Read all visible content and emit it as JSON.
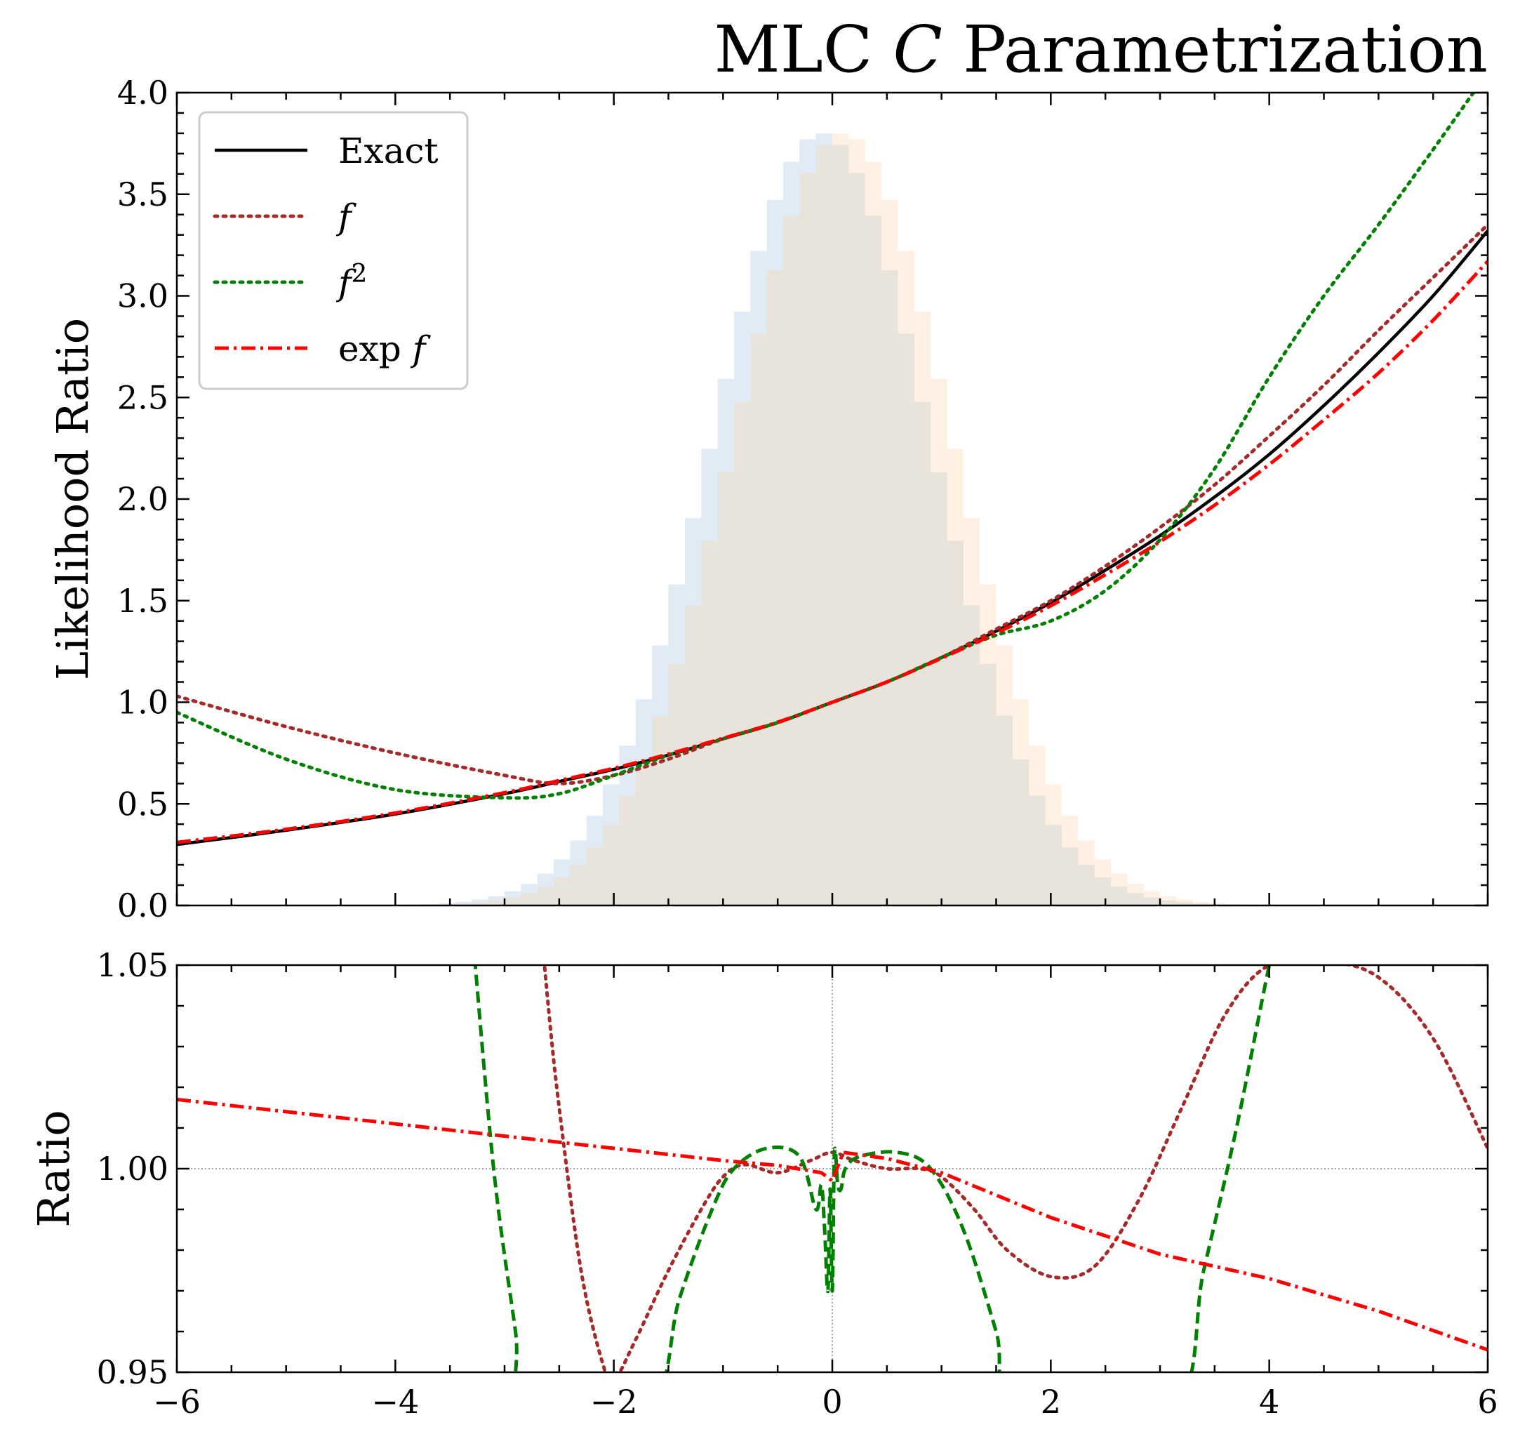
{
  "title": "MLC C Parametrization",
  "colors": {
    "exact": "#000000",
    "f": "#a52a2a",
    "f2": "#008000",
    "expf": "#ff0000",
    "hist_a": "#dbe7f4",
    "hist_b": "#fde9d5",
    "hist_overlap": "#e8e4dc"
  },
  "chart_data": [
    {
      "type": "line",
      "panel": "main",
      "title": "MLC C Parametrization",
      "xlabel": "",
      "ylabel": "Likelihood Ratio",
      "xlim": [
        -6,
        6
      ],
      "ylim": [
        0,
        4
      ],
      "yticks": [
        "0.0",
        "0.5",
        "1.0",
        "1.5",
        "2.0",
        "2.5",
        "3.0",
        "3.5",
        "4.0"
      ],
      "ytick_values": [
        0,
        0.5,
        1,
        1.5,
        2,
        2.5,
        3,
        3.5,
        4
      ],
      "grid": false,
      "legend_position": "top-left",
      "x": [
        -6,
        -5,
        -4,
        -3,
        -2.5,
        -2,
        -1.5,
        -1,
        -0.5,
        0,
        0.5,
        1,
        1.5,
        2,
        2.5,
        3,
        3.5,
        4,
        4.5,
        5,
        5.5,
        6
      ],
      "series": [
        {
          "name": "Exact",
          "style": "solid",
          "color_key": "exact",
          "values": [
            0.3,
            0.37,
            0.45,
            0.55,
            0.61,
            0.67,
            0.74,
            0.82,
            0.9,
            1.0,
            1.1,
            1.22,
            1.35,
            1.49,
            1.65,
            1.82,
            2.01,
            2.22,
            2.46,
            2.72,
            3.0,
            3.32
          ]
        },
        {
          "name": "f",
          "style": "dotted",
          "color_key": "f",
          "values": [
            1.03,
            0.88,
            0.75,
            0.64,
            0.6,
            0.64,
            0.72,
            0.82,
            0.9,
            1.0,
            1.1,
            1.22,
            1.36,
            1.5,
            1.67,
            1.86,
            2.07,
            2.31,
            2.56,
            2.83,
            3.09,
            3.35
          ]
        },
        {
          "name": "f^2",
          "style": "dotted",
          "color_key": "f2",
          "values": [
            0.95,
            0.72,
            0.57,
            0.53,
            0.55,
            0.64,
            0.74,
            0.82,
            0.9,
            1.0,
            1.1,
            1.22,
            1.33,
            1.4,
            1.55,
            1.8,
            2.15,
            2.6,
            3.0,
            3.35,
            3.72,
            4.1
          ]
        },
        {
          "name": "exp f",
          "style": "dashdot",
          "color_key": "expf",
          "values": [
            0.31,
            0.375,
            0.455,
            0.555,
            0.615,
            0.675,
            0.745,
            0.823,
            0.902,
            1.0,
            1.1,
            1.217,
            1.34,
            1.475,
            1.628,
            1.79,
            1.97,
            2.17,
            2.39,
            2.62,
            2.88,
            3.17
          ]
        }
      ],
      "histograms": [
        {
          "color_key": "hist_a",
          "mean": -0.1,
          "std": 1.0,
          "peak": 3.8
        },
        {
          "color_key": "hist_b",
          "mean": 0.1,
          "std": 1.0,
          "peak": 3.8
        }
      ]
    },
    {
      "type": "line",
      "panel": "ratio",
      "xlabel": "",
      "ylabel": "Ratio",
      "xlim": [
        -6,
        6
      ],
      "ylim": [
        0.95,
        1.05
      ],
      "xticks": [
        "−6",
        "−4",
        "−2",
        "0",
        "2",
        "4",
        "6"
      ],
      "xtick_values": [
        -6,
        -4,
        -2,
        0,
        2,
        4,
        6
      ],
      "yticks": [
        "0.95",
        "1.00",
        "1.05"
      ],
      "ytick_values": [
        0.95,
        1.0,
        1.05
      ],
      "reference_lines": {
        "y": 1.0,
        "x": 0
      },
      "series": [
        {
          "name": "f",
          "style": "dotted",
          "color_key": "f",
          "x": [
            -2.7,
            -2.6,
            -2.5,
            -2.3,
            -2.1,
            -2.0,
            -1.8,
            -1.5,
            -1.2,
            -1.0,
            -0.8,
            -0.5,
            -0.2,
            0,
            0.2,
            0.5,
            0.8,
            1.0,
            1.3,
            1.6,
            2.0,
            2.4,
            2.8,
            3.2,
            3.6,
            4.0,
            4.5,
            5.0,
            5.5,
            6.0
          ],
          "values": [
            1.07,
            1.04,
            1.015,
            0.975,
            0.952,
            0.948,
            0.958,
            0.975,
            0.99,
            0.998,
            1.001,
            0.999,
            1.002,
            1.004,
            1.002,
            1.0,
            1.0,
            0.998,
            0.99,
            0.98,
            0.9735,
            0.976,
            0.992,
            1.015,
            1.038,
            1.05,
            1.051,
            1.047,
            1.032,
            1.005
          ]
        },
        {
          "name": "f^2",
          "style": "dashed",
          "color_key": "f2",
          "x": [
            -3.3,
            -3.1,
            -2.9,
            -2.8,
            -1.7,
            -1.4,
            -1.1,
            -0.9,
            -0.6,
            -0.3,
            -0.15,
            -0.1,
            -0.07,
            -0.04,
            -0.02,
            0,
            0.02,
            0.05,
            0.08,
            0.12,
            0.25,
            0.6,
            0.9,
            1.2,
            1.5,
            1.7,
            3.1,
            3.4,
            3.7,
            4.0,
            4.1
          ],
          "values": [
            1.06,
            1.0,
            0.96,
            0.94,
            0.94,
            0.968,
            0.99,
            1.0,
            1.005,
            1.003,
            0.99,
            0.996,
            0.985,
            0.97,
            0.995,
            0.97,
            1.004,
            0.996,
            0.995,
            1.0,
            1.003,
            1.004,
            1.0,
            0.985,
            0.96,
            0.94,
            0.94,
            0.975,
            1.01,
            1.05,
            1.06
          ]
        },
        {
          "name": "exp f",
          "style": "dashdot",
          "color_key": "expf",
          "x": [
            -6,
            -4,
            -2,
            -1,
            -0.5,
            -0.1,
            0,
            0.1,
            0.5,
            1.0,
            2.0,
            3.0,
            4.0,
            5.0,
            6.0
          ],
          "values": [
            1.017,
            1.011,
            1.005,
            1.002,
            1.0008,
            0.999,
            0.997,
            1.004,
            1.0025,
            0.999,
            0.988,
            0.979,
            0.973,
            0.965,
            0.9555
          ]
        }
      ]
    }
  ],
  "legend": {
    "items": [
      {
        "label": "Exact",
        "style": "solid",
        "color_key": "exact"
      },
      {
        "label": "f",
        "style": "dotted",
        "color_key": "f"
      },
      {
        "label": "f",
        "sup": "2",
        "style": "dotted",
        "color_key": "f2"
      },
      {
        "label": "exp f",
        "style": "dashdot",
        "color_key": "expf"
      }
    ]
  }
}
